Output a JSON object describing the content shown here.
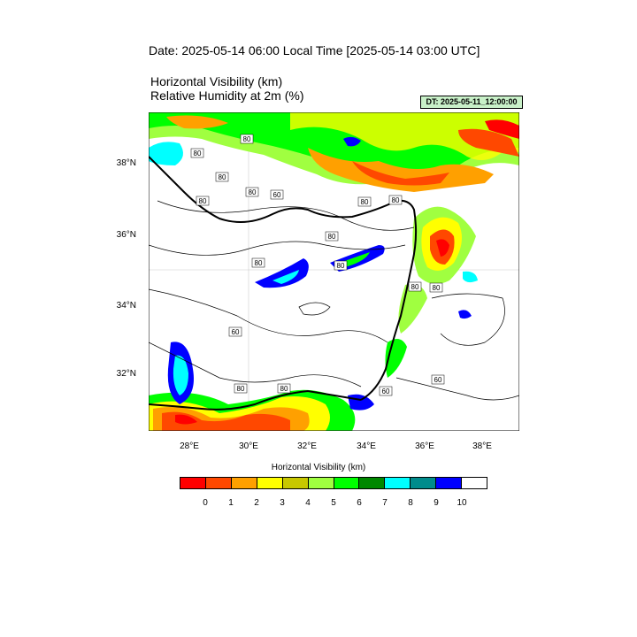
{
  "header": {
    "date_title": "Date: 2025-05-14  06:00 Local Time [2025-05-14  03:00 UTC]",
    "var_line1": "Horizontal Visibility   (km)",
    "var_line2": "Relative Humidity at 2m   (%)",
    "dt_badge": "DT: 2025-05-11_12:00:00"
  },
  "map": {
    "lat_labels": [
      "38°N",
      "36°N",
      "34°N",
      "32°N"
    ],
    "lon_labels": [
      "28°E",
      "30°E",
      "32°E",
      "34°E",
      "36°E",
      "38°E"
    ],
    "contour_labels": [
      "80",
      "80",
      "80",
      "80",
      "80",
      "60",
      "80",
      "80",
      "80",
      "80",
      "80",
      "80",
      "80",
      "60",
      "80",
      "80",
      "60",
      "60"
    ]
  },
  "colorbar": {
    "title": "Horizontal Visibility  (km)",
    "colors": [
      "#ff0000",
      "#ff4800",
      "#ffa000",
      "#ffff00",
      "#c8c800",
      "#a0ff40",
      "#00ff00",
      "#008800",
      "#00ffff",
      "#008c8c",
      "#0000ff",
      "#ffffff"
    ],
    "labels": [
      "0",
      "1",
      "2",
      "3",
      "4",
      "5",
      "6",
      "7",
      "8",
      "9",
      "10"
    ]
  }
}
